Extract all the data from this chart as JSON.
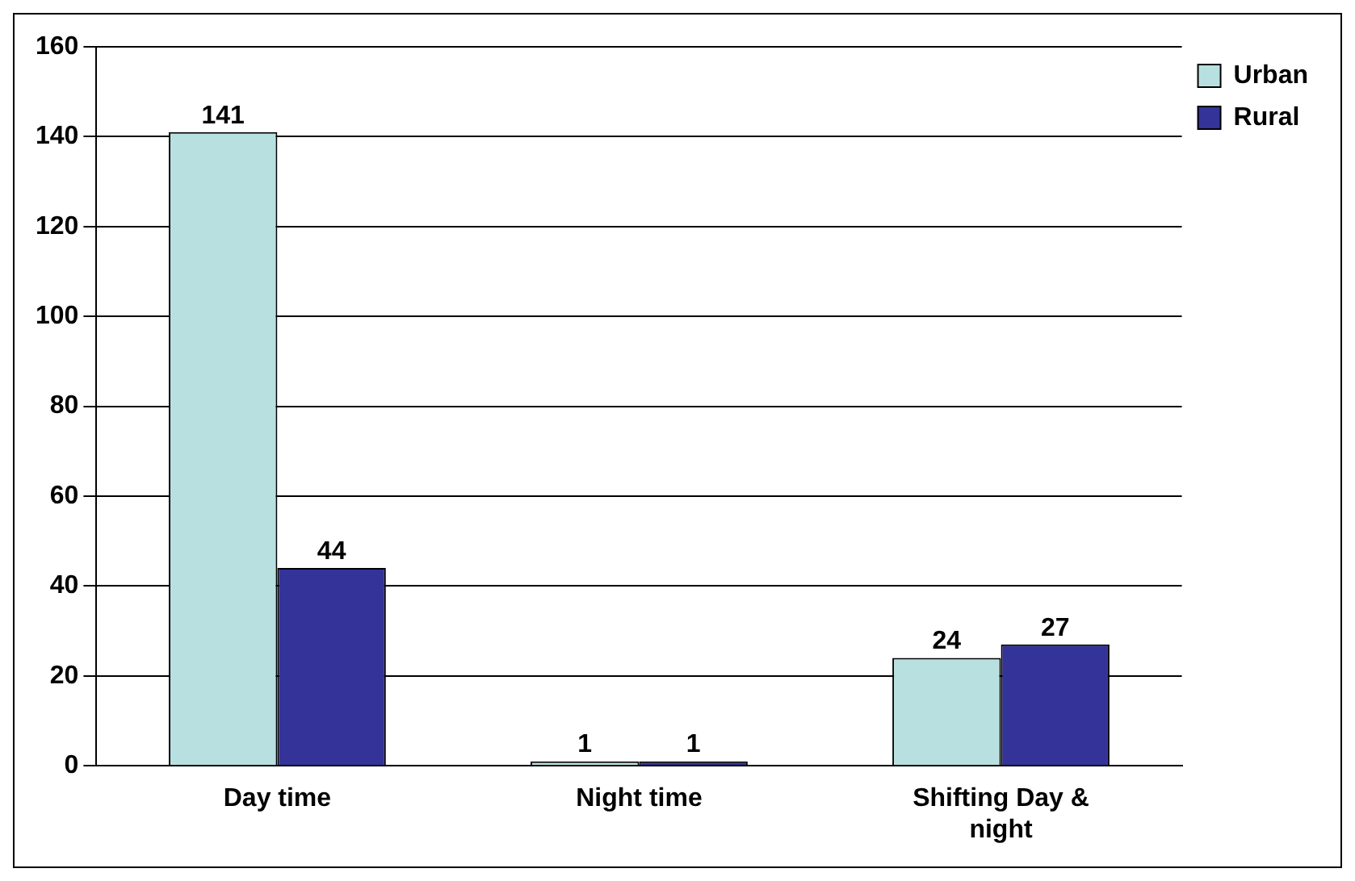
{
  "chart_data": {
    "type": "bar",
    "categories": [
      "Day time",
      "Night time",
      "Shifting Day & night"
    ],
    "series": [
      {
        "name": "Urban",
        "color": "#b8e0e0",
        "values": [
          141,
          1,
          24
        ]
      },
      {
        "name": "Rural",
        "color": "#333399",
        "values": [
          44,
          1,
          27
        ]
      }
    ],
    "ylim": [
      0,
      160
    ],
    "yticks": [
      0,
      20,
      40,
      60,
      80,
      100,
      120,
      140,
      160
    ],
    "grid": "y",
    "legend": "top right",
    "data_labels": true
  }
}
